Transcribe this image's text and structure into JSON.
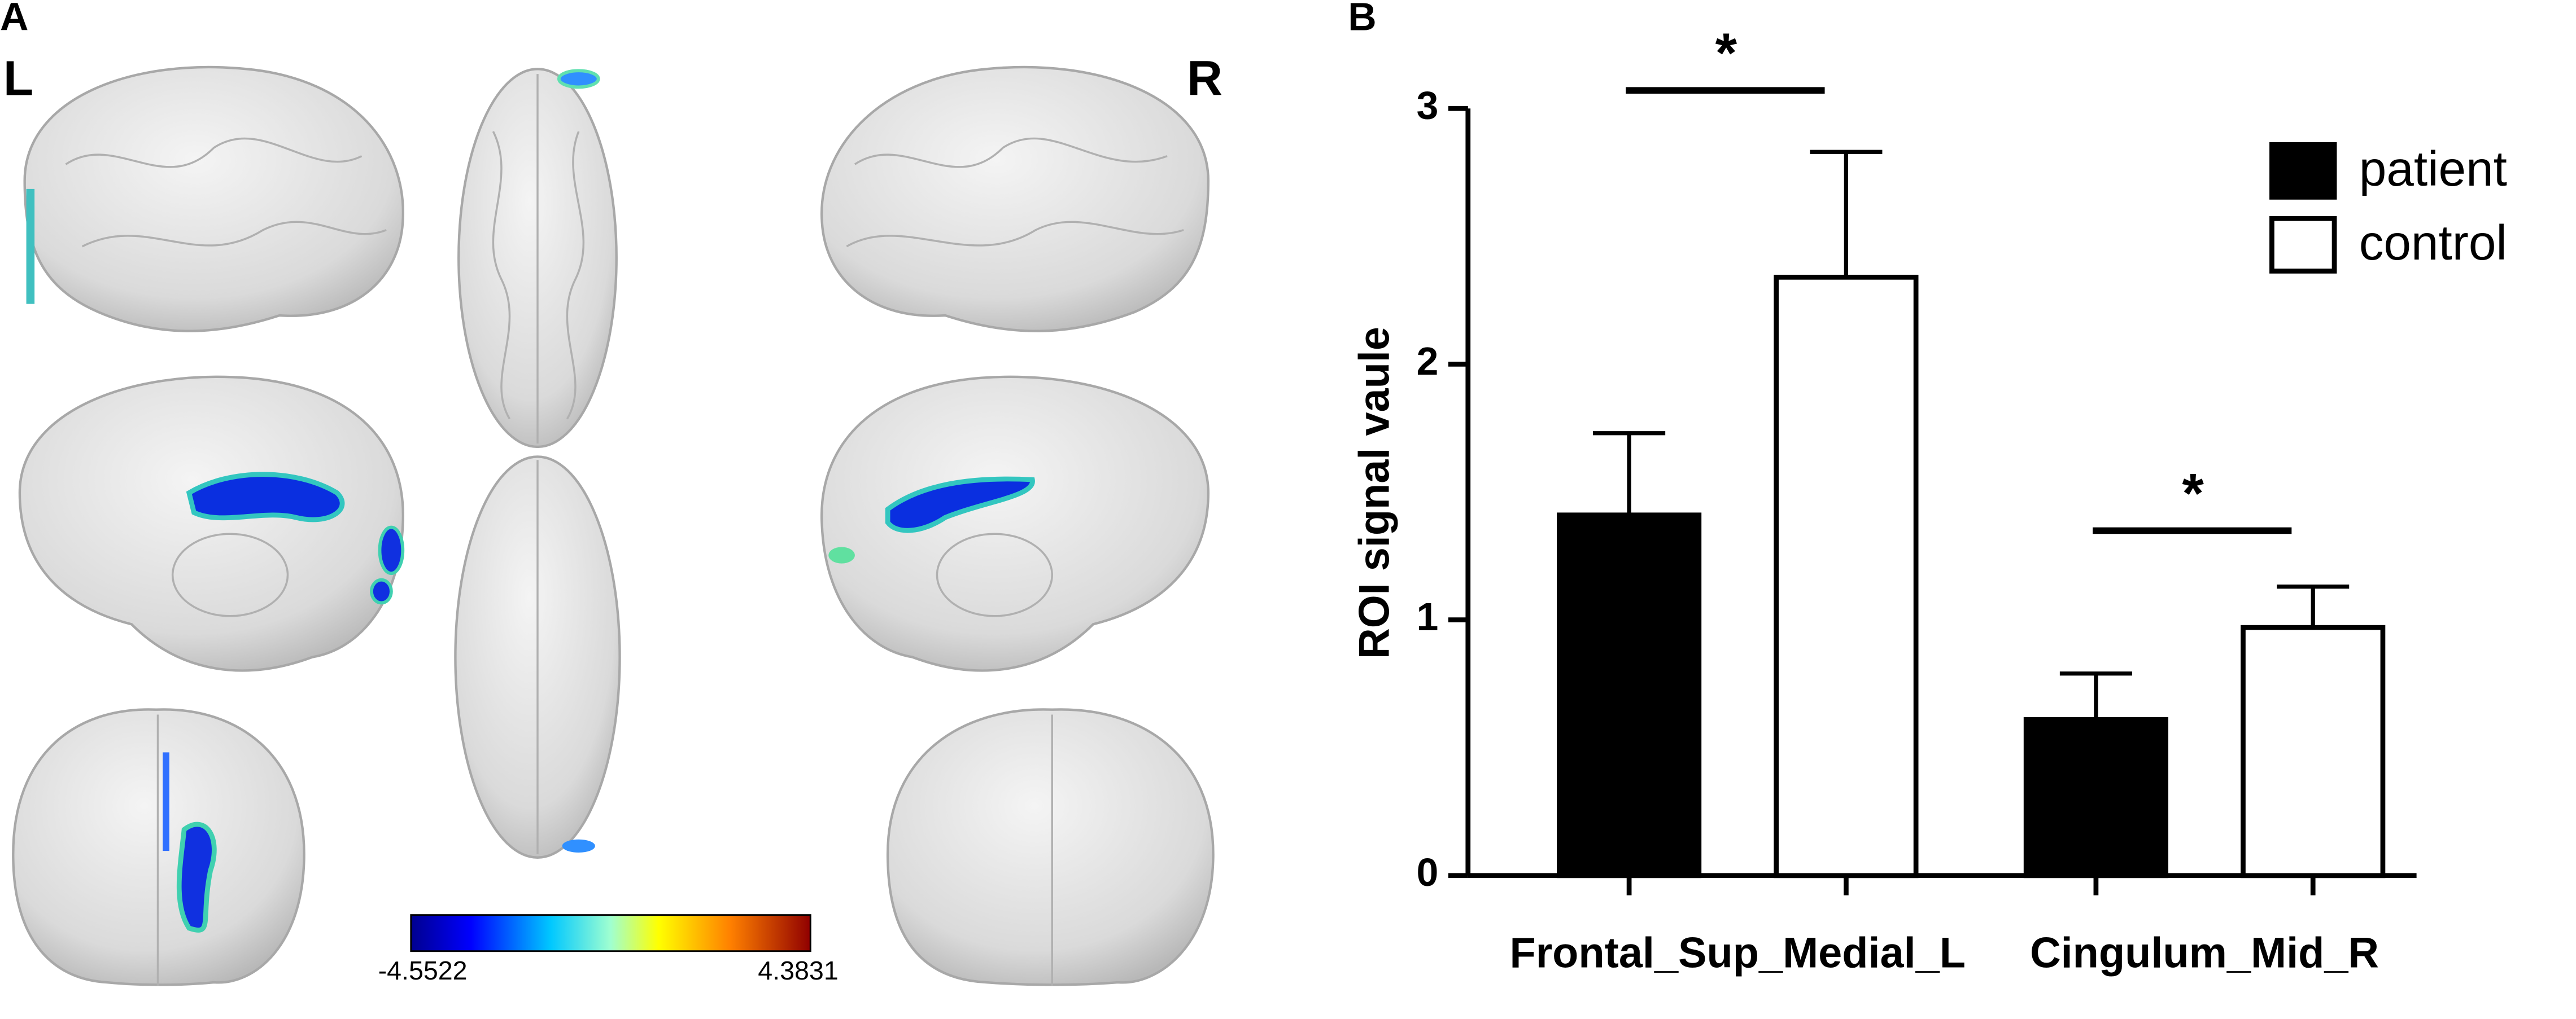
{
  "panel_a": {
    "label": "A",
    "left_label": "L",
    "right_label": "R",
    "colorbar": {
      "min_label": "-4.5522",
      "max_label": "4.3831"
    }
  },
  "chart_data": {
    "type": "bar",
    "panel_label": "B",
    "y_label": "ROI signal vaule",
    "categories": [
      "Frontal_Sup_Medial_L",
      "Cingulum_Mid_R"
    ],
    "series": [
      {
        "name": "patient",
        "color": "#000000",
        "values": [
          1.41,
          0.61
        ],
        "errors": [
          0.32,
          0.18
        ]
      },
      {
        "name": "control",
        "color": "#ffffff",
        "values": [
          2.34,
          0.97
        ],
        "errors": [
          0.49,
          0.16
        ]
      }
    ],
    "ylim": [
      0,
      3
    ],
    "yticks": [
      0,
      1,
      2,
      3
    ],
    "annotations": [
      "*",
      "*"
    ],
    "legend": "top-right"
  }
}
